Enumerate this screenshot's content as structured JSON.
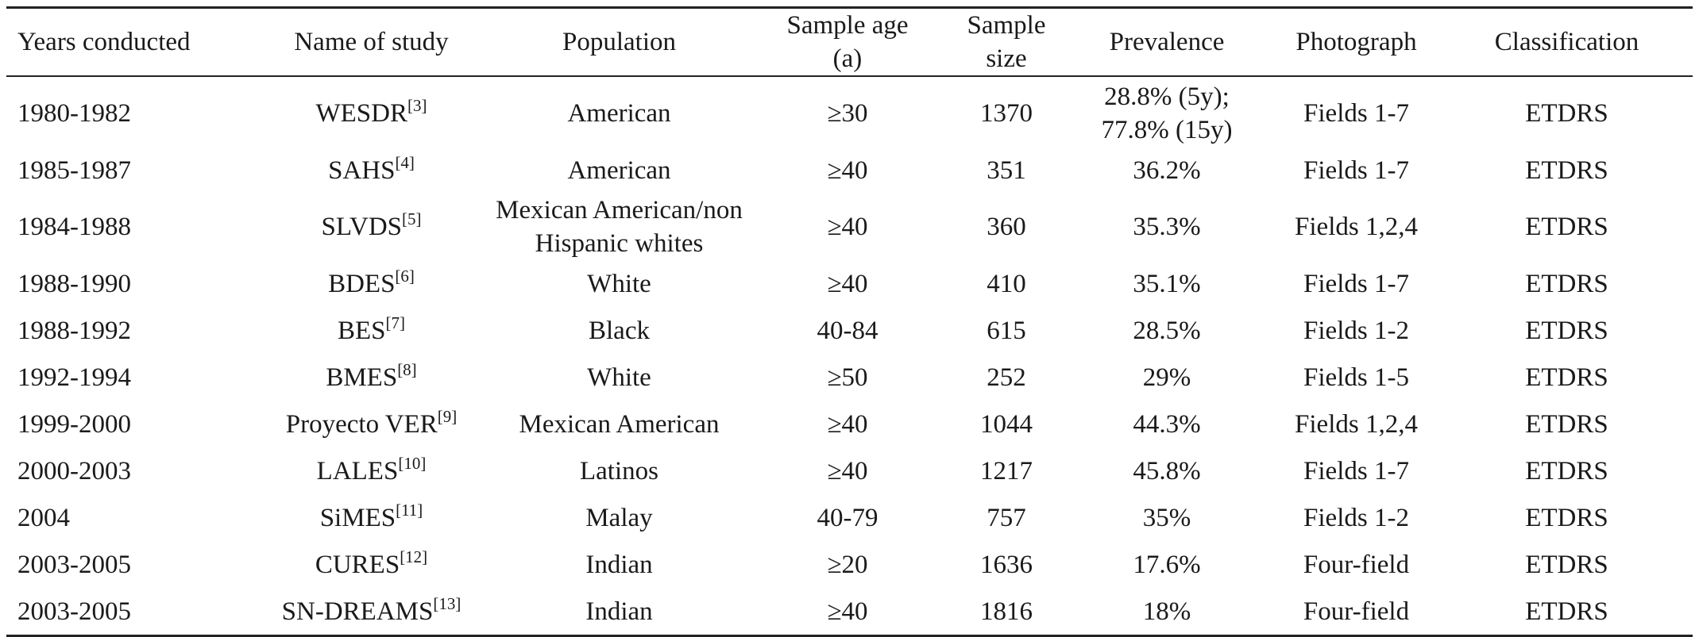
{
  "table": {
    "headers": {
      "years": "Years conducted",
      "study": "Name of study",
      "population": "Population",
      "age_line1": "Sample age",
      "age_line2": "(a)",
      "size_line1": "Sample",
      "size_line2": "size",
      "prevalence": "Prevalence",
      "photograph": "Photograph",
      "classification": "Classification"
    },
    "rows": [
      {
        "years": "1980-1982",
        "study": "WESDR",
        "ref": "[3]",
        "population": "American",
        "population2": "",
        "age": "≥30",
        "size": "1370",
        "prevalence": "28.8% (5y);",
        "prevalence2": "77.8% (15y)",
        "photograph": "Fields 1-7",
        "classification": "ETDRS"
      },
      {
        "years": "1985-1987",
        "study": "SAHS",
        "ref": "[4]",
        "population": "American",
        "population2": "",
        "age": "≥40",
        "size": "351",
        "prevalence": "36.2%",
        "prevalence2": "",
        "photograph": "Fields 1-7",
        "classification": "ETDRS"
      },
      {
        "years": "1984-1988",
        "study": "SLVDS",
        "ref": "[5]",
        "population": "Mexican American/non",
        "population2": "Hispanic whites",
        "age": "≥40",
        "size": "360",
        "prevalence": "35.3%",
        "prevalence2": "",
        "photograph": "Fields 1,2,4",
        "classification": "ETDRS"
      },
      {
        "years": "1988-1990",
        "study": "BDES",
        "ref": "[6]",
        "population": "White",
        "population2": "",
        "age": "≥40",
        "size": "410",
        "prevalence": "35.1%",
        "prevalence2": "",
        "photograph": "Fields 1-7",
        "classification": "ETDRS"
      },
      {
        "years": "1988-1992",
        "study": "BES",
        "ref": "[7]",
        "population": "Black",
        "population2": "",
        "age": "40-84",
        "size": "615",
        "prevalence": "28.5%",
        "prevalence2": "",
        "photograph": "Fields 1-2",
        "classification": "ETDRS"
      },
      {
        "years": "1992-1994",
        "study": "BMES",
        "ref": "[8]",
        "population": "White",
        "population2": "",
        "age": "≥50",
        "size": "252",
        "prevalence": "29%",
        "prevalence2": "",
        "photograph": "Fields 1-5",
        "classification": "ETDRS"
      },
      {
        "years": "1999-2000",
        "study": "Proyecto VER",
        "ref": "[9]",
        "population": "Mexican American",
        "population2": "",
        "age": "≥40",
        "size": "1044",
        "prevalence": "44.3%",
        "prevalence2": "",
        "photograph": "Fields 1,2,4",
        "classification": "ETDRS"
      },
      {
        "years": "2000-2003",
        "study": "LALES",
        "ref": "[10]",
        "population": "Latinos",
        "population2": "",
        "age": "≥40",
        "size": "1217",
        "prevalence": "45.8%",
        "prevalence2": "",
        "photograph": "Fields 1-7",
        "classification": "ETDRS"
      },
      {
        "years": "2004",
        "study": "SiMES",
        "ref": "[11]",
        "population": "Malay",
        "population2": "",
        "age": "40-79",
        "size": "757",
        "prevalence": "35%",
        "prevalence2": "",
        "photograph": "Fields 1-2",
        "classification": "ETDRS"
      },
      {
        "years": "2003-2005",
        "study": "CURES",
        "ref": "[12]",
        "population": "Indian",
        "population2": "",
        "age": "≥20",
        "size": "1636",
        "prevalence": "17.6%",
        "prevalence2": "",
        "photograph": "Four-field",
        "classification": "ETDRS"
      },
      {
        "years": "2003-2005",
        "study": "SN-DREAMS",
        "ref": "[13]",
        "population": "Indian",
        "population2": "",
        "age": "≥40",
        "size": "1816",
        "prevalence": "18%",
        "prevalence2": "",
        "photograph": "Four-field",
        "classification": "ETDRS"
      }
    ]
  }
}
